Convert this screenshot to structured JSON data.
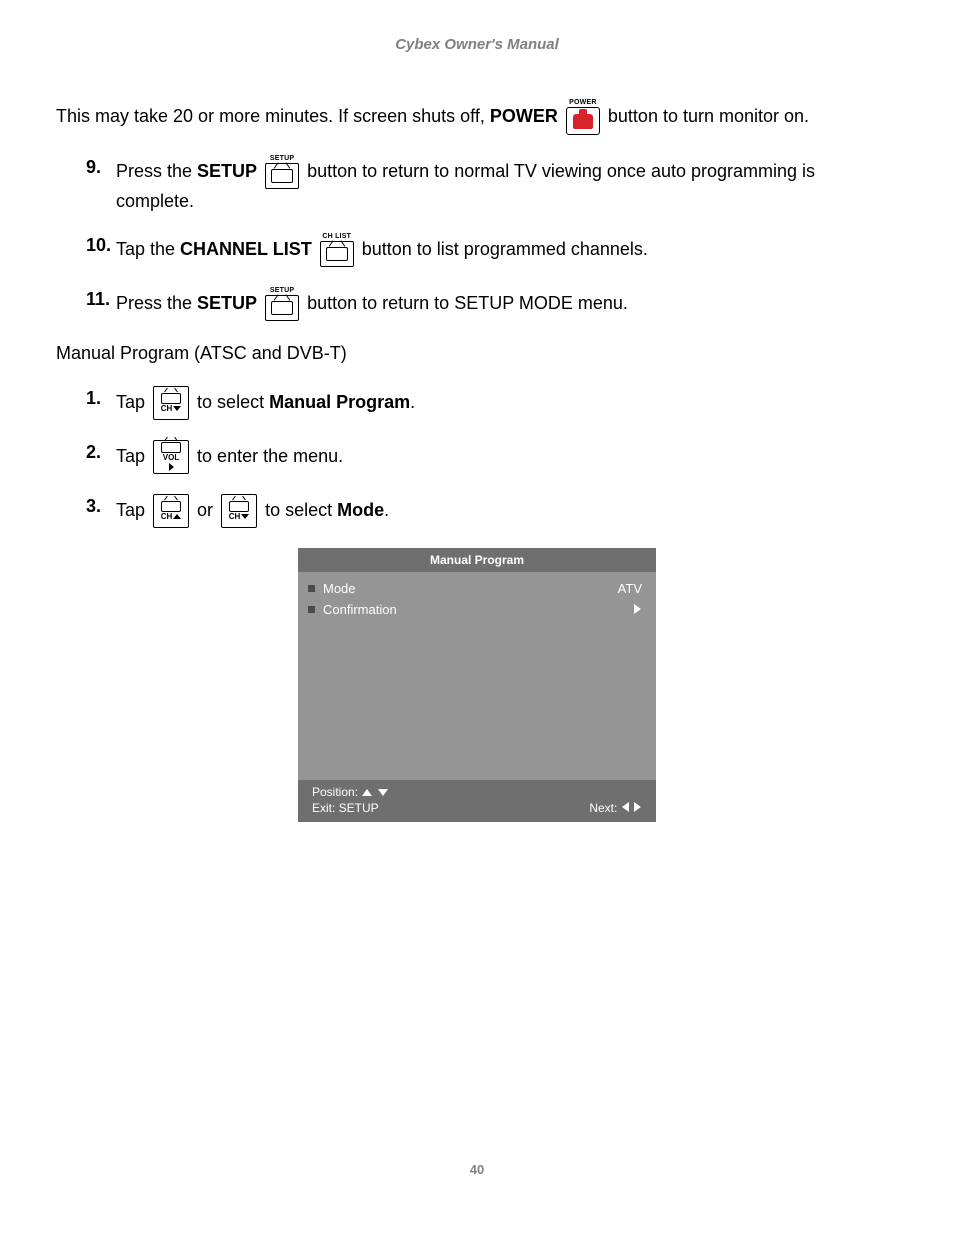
{
  "header": "Cybex Owner's Manual",
  "intro": {
    "pre": "This may take 20 or more minutes. If screen shuts off, ",
    "bold": "POWER",
    "post": " button to turn monitor on."
  },
  "buttons": {
    "power_label": "POWER",
    "setup_label": "SETUP",
    "chlist_label": "CH LIST",
    "ch_down": "CH",
    "ch_up": "CH",
    "vol": "VOL"
  },
  "steps_a": [
    {
      "n": "9.",
      "parts": [
        "Press the ",
        "SETUP",
        "",
        " button to return to normal TV viewing once auto programming is complete."
      ],
      "icon": "setup"
    },
    {
      "n": "10.",
      "parts": [
        "Tap the ",
        "CHANNEL LIST",
        "",
        " button to list programmed channels."
      ],
      "icon": "chlist"
    },
    {
      "n": "11.",
      "parts": [
        "Press the ",
        "SETUP",
        "",
        " button to return to SETUP MODE menu."
      ],
      "icon": "setup"
    }
  ],
  "subhead": "Manual Program (ATSC and DVB-T)",
  "steps_b": [
    {
      "n": "1.",
      "pre": "Tap ",
      "icons": [
        "ch_down"
      ],
      "mid": " to select ",
      "bold": "Manual Program",
      "post": "."
    },
    {
      "n": "2.",
      "pre": "Tap ",
      "icons": [
        "vol_right"
      ],
      "mid": " to enter the menu.",
      "bold": "",
      "post": ""
    },
    {
      "n": "3.",
      "pre": "Tap ",
      "icons": [
        "ch_up",
        "ch_down"
      ],
      "join": " or ",
      "mid": " to select ",
      "bold": "Mode",
      "post": "."
    }
  ],
  "menu": {
    "title": "Manual Program",
    "rows": [
      {
        "label": "Mode",
        "value": "ATV"
      },
      {
        "label": "Confirmation",
        "value": "►"
      }
    ],
    "foot": {
      "position": "Position: ",
      "exit": "Exit: SETUP",
      "next": "Next: "
    },
    "colors": {
      "title_bg": "#6f6f6f",
      "body_bg": "#959595",
      "foot_bg": "#6f6f6f",
      "text": "#ffffff",
      "bullet": "#4a4a4a"
    }
  },
  "page_num": "40"
}
